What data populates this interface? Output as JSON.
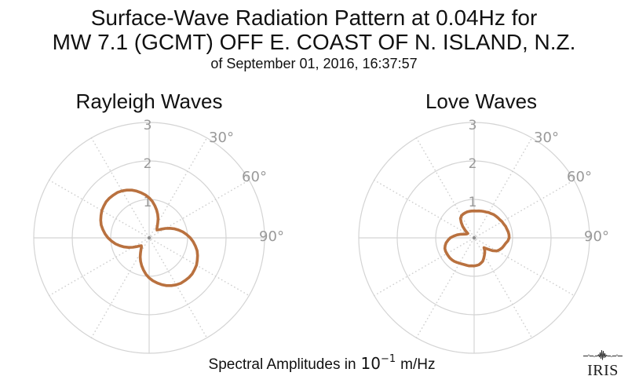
{
  "figure": {
    "title_line1": "Surface-Wave Radiation Pattern at 0.04Hz for",
    "title_line2": "MW 7.1 (GCMT) OFF E. COAST OF N. ISLAND, N.Z.",
    "subtitle": "of September 01, 2016, 16:37:57",
    "caption": {
      "prefix": "Spectral Amplitudes in",
      "base": "10",
      "exponent": "−1",
      "suffix": "m/Hz"
    },
    "logo_text": "IRIS",
    "colors": {
      "curve": "#b9713f",
      "grid": "#d4d4d4",
      "grid_dots": "#cfcfcf",
      "tick_labels": "#999999",
      "text": "#111111",
      "center_dot": "#8f8f8f"
    }
  },
  "chart_data": [
    {
      "type": "line",
      "projection": "polar",
      "title": "Rayleigh Waves",
      "grid": "on",
      "r_max": 3,
      "radial_ticks": [
        "1",
        "2",
        "3"
      ],
      "angle_ticks": [
        {
          "deg": 30,
          "label": "30°"
        },
        {
          "deg": 60,
          "label": "60°"
        },
        {
          "deg": 90,
          "label": "90°"
        }
      ],
      "units": "10^-1 m/Hz",
      "azimuth_convention": "degrees clockwise from top",
      "azimuth_start_deg": 0,
      "azimuth_deg_step": 5,
      "radii": [
        1.04,
        0.95,
        0.85,
        0.75,
        0.65,
        0.55,
        0.45,
        0.37,
        0.31,
        0.29,
        0.33,
        0.4,
        0.49,
        0.59,
        0.69,
        0.79,
        0.89,
        0.98,
        1.07,
        1.15,
        1.22,
        1.29,
        1.34,
        1.38,
        1.42,
        1.44,
        1.46,
        1.46,
        1.45,
        1.44,
        1.41,
        1.37,
        1.32,
        1.26,
        1.19,
        1.12,
        1.04,
        0.95,
        0.85,
        0.75,
        0.65,
        0.55,
        0.45,
        0.37,
        0.31,
        0.29,
        0.33,
        0.4,
        0.49,
        0.59,
        0.69,
        0.79,
        0.89,
        0.98,
        1.07,
        1.15,
        1.22,
        1.29,
        1.34,
        1.38,
        1.42,
        1.44,
        1.46,
        1.46,
        1.45,
        1.44,
        1.41,
        1.37,
        1.32,
        1.26,
        1.19,
        1.12
      ]
    },
    {
      "type": "line",
      "projection": "polar",
      "title": "Love Waves",
      "grid": "on",
      "r_max": 3,
      "radial_ticks": [
        "1",
        "2",
        "3"
      ],
      "angle_ticks": [
        {
          "deg": 30,
          "label": "30°"
        },
        {
          "deg": 60,
          "label": "60°"
        },
        {
          "deg": 90,
          "label": "90°"
        }
      ],
      "units": "10^-1 m/Hz",
      "azimuth_convention": "degrees clockwise from top",
      "azimuth_start_deg": 0,
      "azimuth_deg_step": 5,
      "radii": [
        0.7,
        0.7,
        0.71,
        0.72,
        0.73,
        0.74,
        0.76,
        0.77,
        0.79,
        0.8,
        0.81,
        0.82,
        0.84,
        0.85,
        0.87,
        0.88,
        0.9,
        0.91,
        0.91,
        0.88,
        0.83,
        0.8,
        0.77,
        0.73,
        0.68,
        0.58,
        0.45,
        0.36,
        0.43,
        0.48,
        0.53,
        0.59,
        0.65,
        0.68,
        0.71,
        0.72,
        0.73,
        0.73,
        0.74,
        0.74,
        0.74,
        0.75,
        0.76,
        0.78,
        0.8,
        0.81,
        0.82,
        0.82,
        0.82,
        0.82,
        0.81,
        0.78,
        0.74,
        0.68,
        0.62,
        0.53,
        0.45,
        0.36,
        0.28,
        0.23,
        0.21,
        0.2,
        0.3,
        0.42,
        0.52,
        0.62,
        0.66,
        0.68,
        0.69,
        0.7,
        0.7,
        0.7
      ]
    }
  ]
}
